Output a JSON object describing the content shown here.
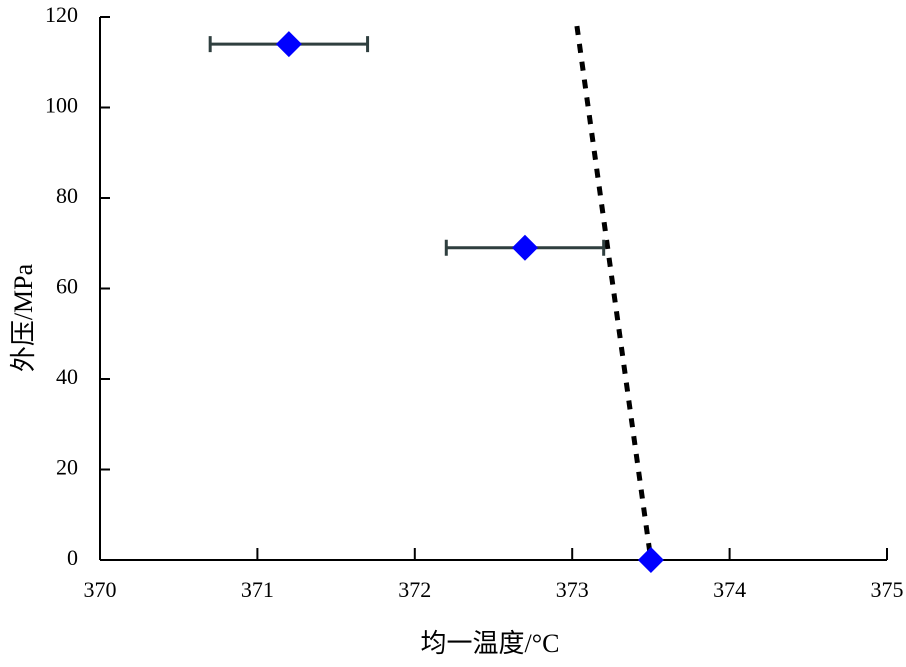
{
  "chart_data": {
    "type": "scatter",
    "xlabel": "均一温度/°C",
    "ylabel": "外压/MPa",
    "xlim": [
      370,
      375
    ],
    "xticks": [
      370,
      371,
      372,
      373,
      374,
      375
    ],
    "ylim": [
      0,
      120
    ],
    "yticks": [
      0,
      20,
      40,
      60,
      80,
      100,
      120
    ],
    "series": [
      {
        "color": "#0000ff",
        "error_color": "#2f3f3f",
        "x": [
          371.2,
          372.7,
          373.5
        ],
        "values": [
          114,
          69,
          0
        ],
        "x_errors": [
          0.5,
          0.5,
          null
        ]
      }
    ],
    "trend_line": {
      "color": "#000000",
      "x": [
        373.03,
        373.5
      ],
      "values": [
        118,
        0
      ]
    }
  }
}
